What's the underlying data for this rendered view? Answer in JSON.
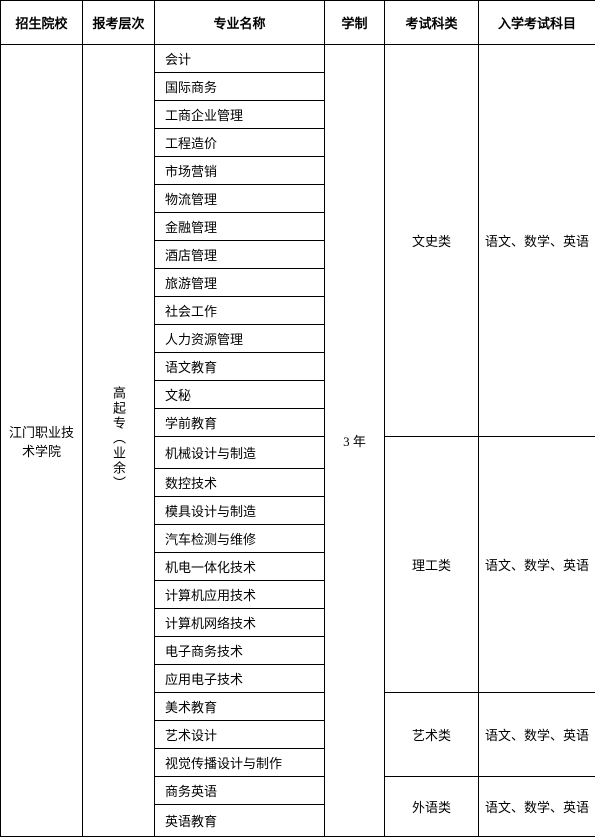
{
  "headers": {
    "school": "招生院校",
    "level": "报考层次",
    "major": "专业名称",
    "duration": "学制",
    "category": "考试科类",
    "subjects": "入学考试科目"
  },
  "school": "江门职业技术学院",
  "level": "高起专（业余）",
  "duration": "3 年",
  "majors": {
    "liberal": [
      "会计",
      "国际商务",
      "工商企业管理",
      "工程造价",
      "市场营销",
      "物流管理",
      "金融管理",
      "酒店管理",
      "旅游管理",
      "社会工作",
      "人力资源管理",
      "语文教育",
      "文秘",
      "学前教育"
    ],
    "science": [
      "机械设计与制造",
      "数控技术",
      "模具设计与制造",
      "汽车检测与维修",
      "机电一体化技术",
      "计算机应用技术",
      "计算机网络技术",
      "电子商务技术",
      "应用电子技术"
    ],
    "art": [
      "美术教育",
      "艺术设计",
      "视觉传播设计与制作"
    ],
    "foreign": [
      "商务英语",
      "英语教育"
    ]
  },
  "categories": {
    "liberal": "文史类",
    "science": "理工类",
    "art": "艺术类",
    "foreign": "外语类"
  },
  "subjects": {
    "liberal": "语文、数学、英语",
    "science": "语文、数学、英语",
    "art": "语文、数学、英语",
    "foreign": "语文、数学、英语"
  },
  "styles": {
    "border_color": "#000000",
    "background_color": "#ffffff",
    "font_size": 13,
    "font_family": "SimSun"
  }
}
